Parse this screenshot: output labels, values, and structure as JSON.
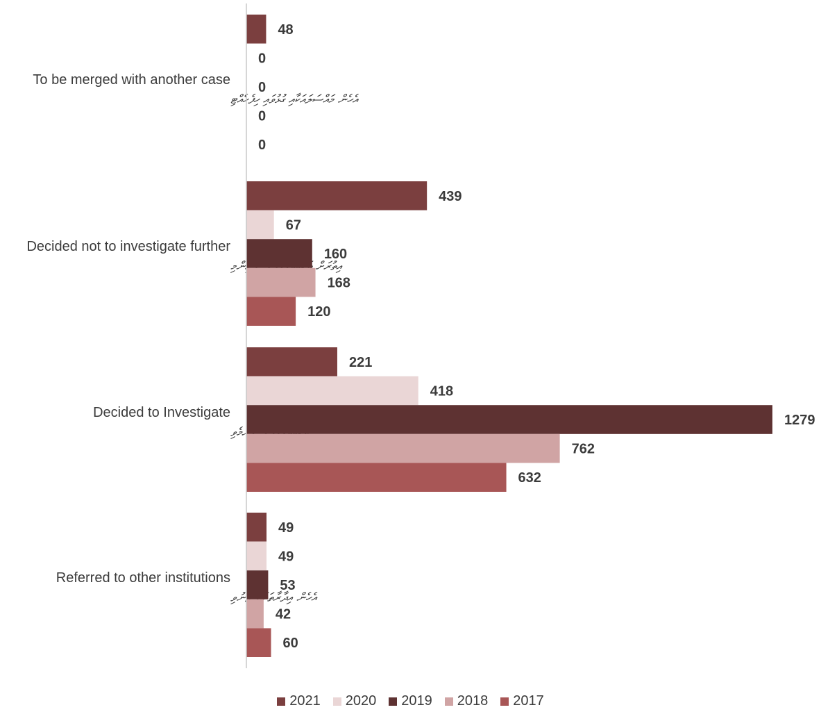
{
  "chart_data": {
    "type": "bar",
    "orientation": "horizontal",
    "categories": [
      {
        "en": "To be merged with another case",
        "dv": "އެހެން މައްސަލައަކާއި ގުޅުވައި ހިފެހެއްޓި"
      },
      {
        "en": "Decided not to  investigate  further",
        "dv": "އިތުރަށް ތަހުޤީޤުކުރުމަށް ނުނިންމި"
      },
      {
        "en": "Decided to Investigate",
        "dv": "ތަހުޤީޤުކުރުމަށް ނިންމެވި"
      },
      {
        "en": "Referred to other institutions",
        "dv": "އެހެން އިދާރާތަކަށް ފޮނުވި"
      }
    ],
    "series": [
      {
        "name": "2021",
        "color": "#7b3f3f",
        "values": [
          48,
          439,
          221,
          49
        ]
      },
      {
        "name": "2020",
        "color": "#ead6d6",
        "values": [
          0,
          67,
          418,
          49
        ]
      },
      {
        "name": "2019",
        "color": "#5e3232",
        "values": [
          0,
          160,
          1279,
          53
        ]
      },
      {
        "name": "2018",
        "color": "#d0a4a4",
        "values": [
          0,
          168,
          762,
          42
        ]
      },
      {
        "name": "2017",
        "color": "#a85656",
        "values": [
          0,
          120,
          632,
          60
        ]
      }
    ],
    "xlim": [
      0,
      1279
    ],
    "grid": false,
    "legend_position": "bottom"
  }
}
